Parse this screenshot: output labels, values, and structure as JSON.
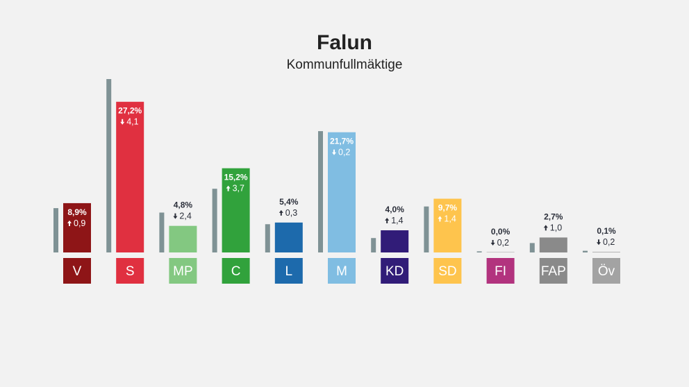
{
  "header": {
    "title": "Falun",
    "subtitle": "Kommunfullmäktige"
  },
  "colors": {
    "background": "#f2f2f2",
    "previous_bar": "#7f9295",
    "text_dark": "#2b2f3a",
    "text_light": "#ffffff"
  },
  "chart_data": {
    "type": "bar",
    "title": "Falun",
    "subtitle": "Kommunfullmäktige",
    "unit": "%",
    "categories": [
      "V",
      "S",
      "MP",
      "C",
      "L",
      "M",
      "KD",
      "SD",
      "FI",
      "FAP",
      "Öv"
    ],
    "series": [
      {
        "values": [
          8.9,
          27.2,
          4.8,
          15.2,
          5.4,
          21.7,
          4.0,
          9.7,
          0.0,
          2.7,
          0.1
        ],
        "labels": [
          "8,9%",
          "27,2%",
          "4,8%",
          "15,2%",
          "5,4%",
          "21,7%",
          "4,0%",
          "9,7%",
          "0,0%",
          "2,7%",
          "0,1%"
        ]
      },
      {
        "values": [
          8.0,
          31.3,
          7.2,
          11.5,
          5.1,
          21.9,
          2.6,
          8.3,
          0.2,
          1.7,
          0.3
        ]
      }
    ],
    "change": {
      "values": [
        0.9,
        -4.1,
        -2.4,
        3.7,
        0.3,
        -0.2,
        1.4,
        1.4,
        -0.2,
        1.0,
        -0.2
      ],
      "labels": [
        "0,9",
        "4,1",
        "2,4",
        "3,7",
        "0,3",
        "0,2",
        "1,4",
        "1,4",
        "0,2",
        "1,0",
        "0,2"
      ]
    },
    "colors": [
      "#8e1517",
      "#e03040",
      "#83c881",
      "#31a23c",
      "#1d6aac",
      "#80bde2",
      "#311c78",
      "#fec44d",
      "#b2337e",
      "#8a8a8a",
      "#a3a3a3"
    ],
    "label_inside": [
      true,
      true,
      false,
      true,
      false,
      true,
      false,
      true,
      false,
      false,
      false
    ],
    "ylim": [
      0,
      31.3
    ],
    "grid": false,
    "legend": "none"
  }
}
